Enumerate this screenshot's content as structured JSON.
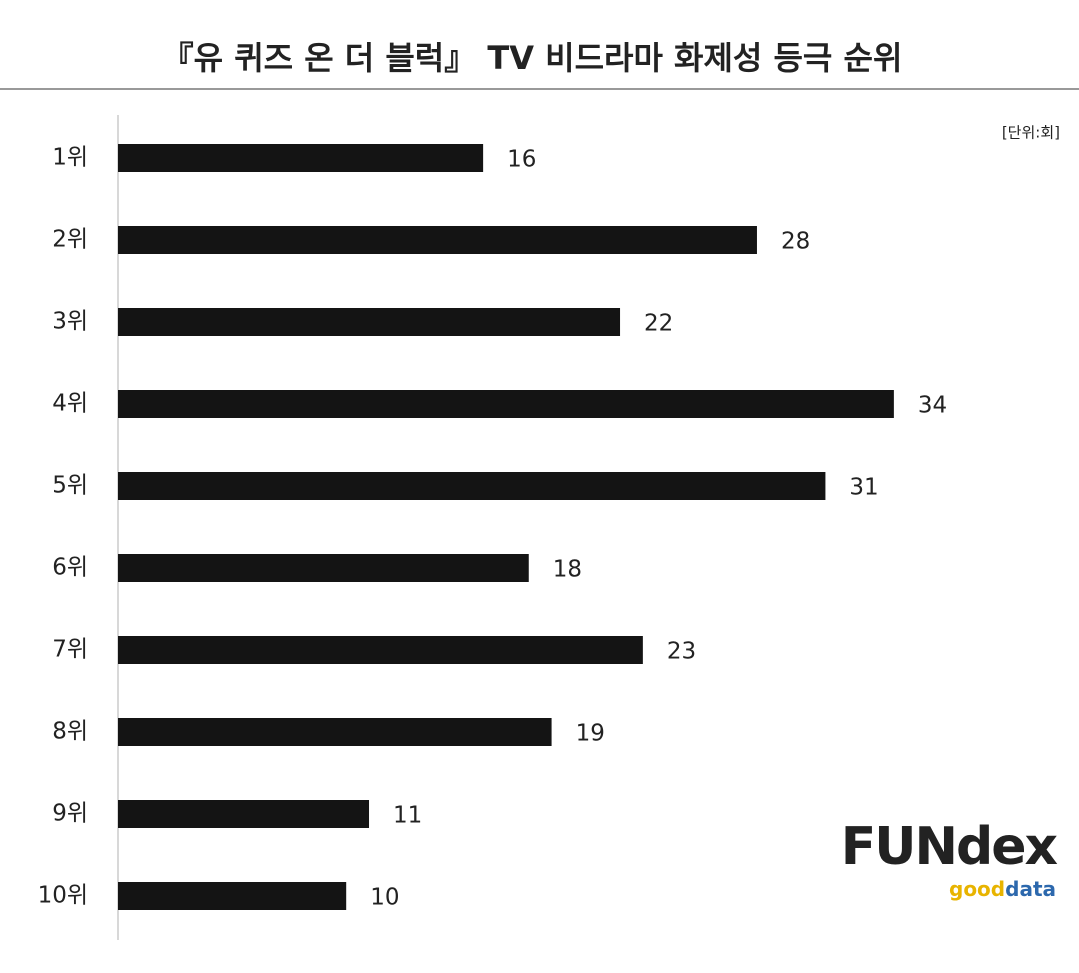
{
  "chart_data": {
    "type": "bar",
    "orientation": "horizontal",
    "title": "『유 퀴즈 온 더 블럭』 TV 비드라마 화제성 등극 순위",
    "unit_note": "[단위:회]",
    "categories": [
      "1위",
      "2위",
      "3위",
      "4위",
      "5위",
      "6위",
      "7위",
      "8위",
      "9위",
      "10위"
    ],
    "values": [
      16,
      28,
      22,
      34,
      31,
      18,
      23,
      19,
      11,
      10
    ],
    "color": "#141414",
    "logo": {
      "brand": "FUNdex",
      "sub1": "good",
      "sub2": "data"
    }
  }
}
